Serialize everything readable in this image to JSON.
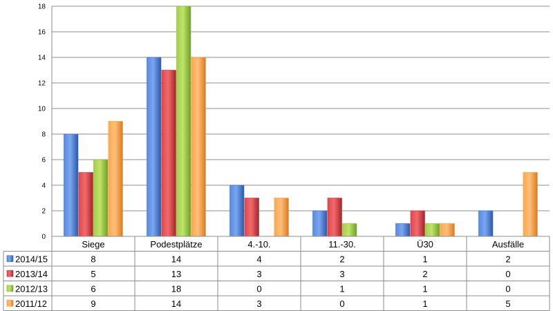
{
  "chart_data": {
    "type": "bar",
    "categories": [
      "Siege",
      "Podestplätze",
      "4.-10.",
      "11.-30.",
      "Ü30",
      "Ausfälle"
    ],
    "series": [
      {
        "name": "2014/15",
        "color": "#3c6fc4",
        "values": [
          8,
          14,
          4,
          2,
          1,
          2
        ]
      },
      {
        "name": "2013/14",
        "color": "#c8353a",
        "values": [
          5,
          13,
          3,
          3,
          2,
          0
        ]
      },
      {
        "name": "2012/13",
        "color": "#8cbd3a",
        "values": [
          6,
          18,
          0,
          1,
          1,
          0
        ]
      },
      {
        "name": "2011/12",
        "color": "#f79a3c",
        "values": [
          9,
          14,
          3,
          0,
          1,
          5
        ]
      }
    ],
    "y_ticks": [
      "0",
      "2",
      "4",
      "6",
      "8",
      "10",
      "12",
      "14",
      "16",
      "18"
    ],
    "ylim": [
      0,
      18
    ],
    "grid": true,
    "legend": "data-table"
  }
}
